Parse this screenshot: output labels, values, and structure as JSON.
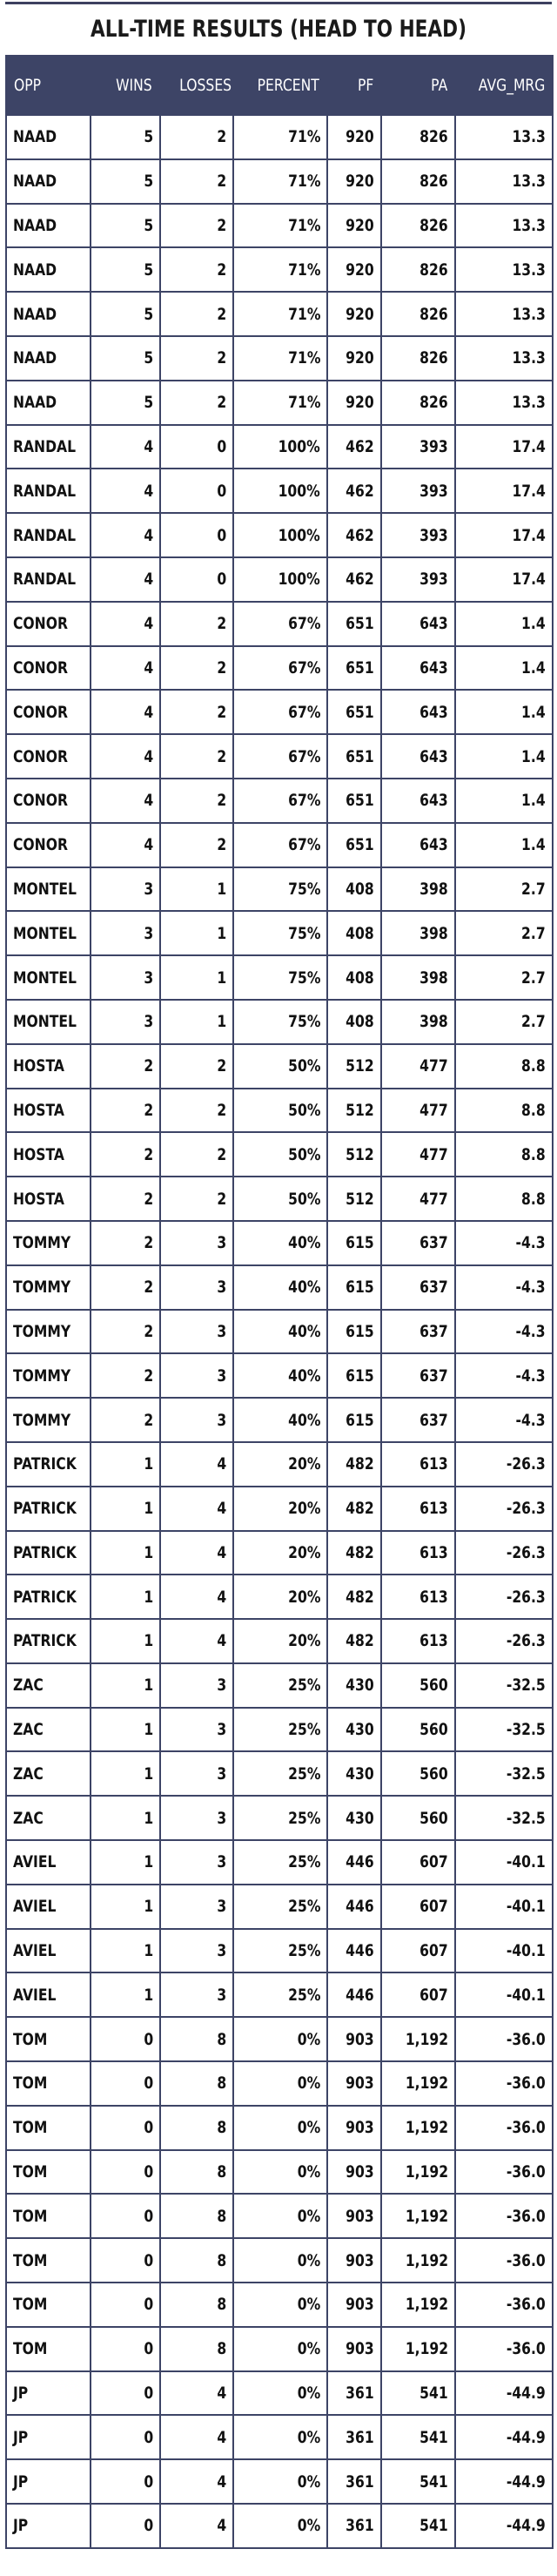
{
  "title": "ALL-TIME RESULTS (HEAD TO HEAD)",
  "columns": [
    "OPP",
    "WINS",
    "LOSSES",
    "PERCENT",
    "PF",
    "PA",
    "AVG_MRG"
  ],
  "rows": [
    [
      "NAAD",
      "5",
      "2",
      "71%",
      "920",
      "826",
      "13.3"
    ],
    [
      "NAAD",
      "5",
      "2",
      "71%",
      "920",
      "826",
      "13.3"
    ],
    [
      "NAAD",
      "5",
      "2",
      "71%",
      "920",
      "826",
      "13.3"
    ],
    [
      "NAAD",
      "5",
      "2",
      "71%",
      "920",
      "826",
      "13.3"
    ],
    [
      "NAAD",
      "5",
      "2",
      "71%",
      "920",
      "826",
      "13.3"
    ],
    [
      "NAAD",
      "5",
      "2",
      "71%",
      "920",
      "826",
      "13.3"
    ],
    [
      "NAAD",
      "5",
      "2",
      "71%",
      "920",
      "826",
      "13.3"
    ],
    [
      "RANDAL",
      "4",
      "0",
      "100%",
      "462",
      "393",
      "17.4"
    ],
    [
      "RANDAL",
      "4",
      "0",
      "100%",
      "462",
      "393",
      "17.4"
    ],
    [
      "RANDAL",
      "4",
      "0",
      "100%",
      "462",
      "393",
      "17.4"
    ],
    [
      "RANDAL",
      "4",
      "0",
      "100%",
      "462",
      "393",
      "17.4"
    ],
    [
      "CONOR",
      "4",
      "2",
      "67%",
      "651",
      "643",
      "1.4"
    ],
    [
      "CONOR",
      "4",
      "2",
      "67%",
      "651",
      "643",
      "1.4"
    ],
    [
      "CONOR",
      "4",
      "2",
      "67%",
      "651",
      "643",
      "1.4"
    ],
    [
      "CONOR",
      "4",
      "2",
      "67%",
      "651",
      "643",
      "1.4"
    ],
    [
      "CONOR",
      "4",
      "2",
      "67%",
      "651",
      "643",
      "1.4"
    ],
    [
      "CONOR",
      "4",
      "2",
      "67%",
      "651",
      "643",
      "1.4"
    ],
    [
      "MONTEL",
      "3",
      "1",
      "75%",
      "408",
      "398",
      "2.7"
    ],
    [
      "MONTEL",
      "3",
      "1",
      "75%",
      "408",
      "398",
      "2.7"
    ],
    [
      "MONTEL",
      "3",
      "1",
      "75%",
      "408",
      "398",
      "2.7"
    ],
    [
      "MONTEL",
      "3",
      "1",
      "75%",
      "408",
      "398",
      "2.7"
    ],
    [
      "HOSTA",
      "2",
      "2",
      "50%",
      "512",
      "477",
      "8.8"
    ],
    [
      "HOSTA",
      "2",
      "2",
      "50%",
      "512",
      "477",
      "8.8"
    ],
    [
      "HOSTA",
      "2",
      "2",
      "50%",
      "512",
      "477",
      "8.8"
    ],
    [
      "HOSTA",
      "2",
      "2",
      "50%",
      "512",
      "477",
      "8.8"
    ],
    [
      "TOMMY",
      "2",
      "3",
      "40%",
      "615",
      "637",
      "-4.3"
    ],
    [
      "TOMMY",
      "2",
      "3",
      "40%",
      "615",
      "637",
      "-4.3"
    ],
    [
      "TOMMY",
      "2",
      "3",
      "40%",
      "615",
      "637",
      "-4.3"
    ],
    [
      "TOMMY",
      "2",
      "3",
      "40%",
      "615",
      "637",
      "-4.3"
    ],
    [
      "TOMMY",
      "2",
      "3",
      "40%",
      "615",
      "637",
      "-4.3"
    ],
    [
      "PATRICK",
      "1",
      "4",
      "20%",
      "482",
      "613",
      "-26.3"
    ],
    [
      "PATRICK",
      "1",
      "4",
      "20%",
      "482",
      "613",
      "-26.3"
    ],
    [
      "PATRICK",
      "1",
      "4",
      "20%",
      "482",
      "613",
      "-26.3"
    ],
    [
      "PATRICK",
      "1",
      "4",
      "20%",
      "482",
      "613",
      "-26.3"
    ],
    [
      "PATRICK",
      "1",
      "4",
      "20%",
      "482",
      "613",
      "-26.3"
    ],
    [
      "ZAC",
      "1",
      "3",
      "25%",
      "430",
      "560",
      "-32.5"
    ],
    [
      "ZAC",
      "1",
      "3",
      "25%",
      "430",
      "560",
      "-32.5"
    ],
    [
      "ZAC",
      "1",
      "3",
      "25%",
      "430",
      "560",
      "-32.5"
    ],
    [
      "ZAC",
      "1",
      "3",
      "25%",
      "430",
      "560",
      "-32.5"
    ],
    [
      "AVIEL",
      "1",
      "3",
      "25%",
      "446",
      "607",
      "-40.1"
    ],
    [
      "AVIEL",
      "1",
      "3",
      "25%",
      "446",
      "607",
      "-40.1"
    ],
    [
      "AVIEL",
      "1",
      "3",
      "25%",
      "446",
      "607",
      "-40.1"
    ],
    [
      "AVIEL",
      "1",
      "3",
      "25%",
      "446",
      "607",
      "-40.1"
    ],
    [
      "TOM",
      "0",
      "8",
      "0%",
      "903",
      "1,192",
      "-36.0"
    ],
    [
      "TOM",
      "0",
      "8",
      "0%",
      "903",
      "1,192",
      "-36.0"
    ],
    [
      "TOM",
      "0",
      "8",
      "0%",
      "903",
      "1,192",
      "-36.0"
    ],
    [
      "TOM",
      "0",
      "8",
      "0%",
      "903",
      "1,192",
      "-36.0"
    ],
    [
      "TOM",
      "0",
      "8",
      "0%",
      "903",
      "1,192",
      "-36.0"
    ],
    [
      "TOM",
      "0",
      "8",
      "0%",
      "903",
      "1,192",
      "-36.0"
    ],
    [
      "TOM",
      "0",
      "8",
      "0%",
      "903",
      "1,192",
      "-36.0"
    ],
    [
      "TOM",
      "0",
      "8",
      "0%",
      "903",
      "1,192",
      "-36.0"
    ],
    [
      "JP",
      "0",
      "4",
      "0%",
      "361",
      "541",
      "-44.9"
    ],
    [
      "JP",
      "0",
      "4",
      "0%",
      "361",
      "541",
      "-44.9"
    ],
    [
      "JP",
      "0",
      "4",
      "0%",
      "361",
      "541",
      "-44.9"
    ],
    [
      "JP",
      "0",
      "4",
      "0%",
      "361",
      "541",
      "-44.9"
    ]
  ],
  "colors": {
    "header_bg": "#3d4466",
    "border": "#3d4466",
    "header_text": "#ffffff"
  }
}
